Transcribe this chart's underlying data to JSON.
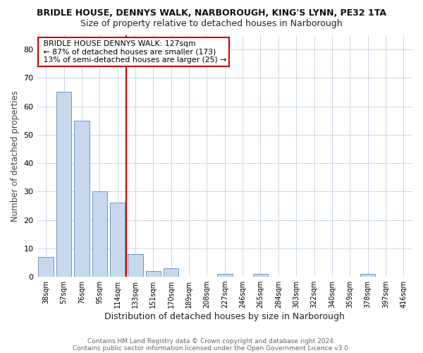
{
  "title": "BRIDLE HOUSE, DENNYS WALK, NARBOROUGH, KING'S LYNN, PE32 1TA",
  "subtitle": "Size of property relative to detached houses in Narborough",
  "xlabel": "Distribution of detached houses by size in Narborough",
  "ylabel": "Number of detached properties",
  "bar_labels": [
    "38sqm",
    "57sqm",
    "76sqm",
    "95sqm",
    "114sqm",
    "133sqm",
    "151sqm",
    "170sqm",
    "189sqm",
    "208sqm",
    "227sqm",
    "246sqm",
    "265sqm",
    "284sqm",
    "303sqm",
    "322sqm",
    "340sqm",
    "359sqm",
    "378sqm",
    "397sqm",
    "416sqm"
  ],
  "bar_values": [
    7,
    65,
    55,
    30,
    26,
    8,
    2,
    3,
    0,
    0,
    1,
    0,
    1,
    0,
    0,
    0,
    0,
    0,
    1,
    0,
    0
  ],
  "bar_color": "#c8d8ec",
  "bar_edge_color": "#6699cc",
  "ylim": [
    0,
    85
  ],
  "yticks": [
    0,
    10,
    20,
    30,
    40,
    50,
    60,
    70,
    80
  ],
  "vline_x_index": 4.5,
  "vline_color": "#cc0000",
  "annotation_title": "BRIDLE HOUSE DENNYS WALK: 127sqm",
  "annotation_line1": "← 87% of detached houses are smaller (173)",
  "annotation_line2": "13% of semi-detached houses are larger (25) →",
  "annotation_box_color": "#ffffff",
  "annotation_box_edge": "#cc0000",
  "footer1": "Contains HM Land Registry data © Crown copyright and database right 2024.",
  "footer2": "Contains public sector information licensed under the Open Government Licence v3.0.",
  "background_color": "#ffffff",
  "grid_color": "#c8d4e8"
}
